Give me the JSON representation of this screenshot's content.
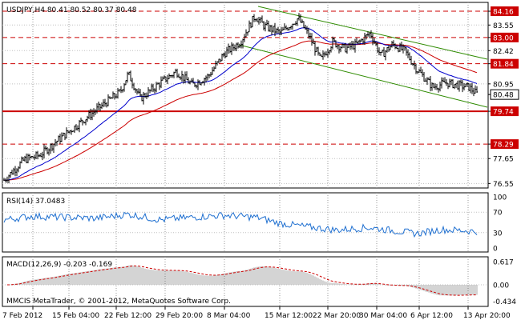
{
  "header": {
    "symbol_line": "USDJPY,H4  80.41 80.52 80.37 80.48"
  },
  "main_panel": {
    "price_levels": [
      {
        "label": "84.16",
        "value": 84.16,
        "style": "box"
      },
      {
        "label": "83.55",
        "value": 83.55,
        "style": "tick"
      },
      {
        "label": "83.00",
        "value": 83.0,
        "style": "box"
      },
      {
        "label": "82.42",
        "value": 82.42,
        "style": "tick"
      },
      {
        "label": "81.84",
        "value": 81.84,
        "style": "box"
      },
      {
        "label": "80.95",
        "value": 80.95,
        "style": "tick"
      },
      {
        "label": "80.48",
        "value": 80.48,
        "style": "current"
      },
      {
        "label": "79.74",
        "value": 79.74,
        "style": "box"
      },
      {
        "label": "78.29",
        "value": 78.29,
        "style": "box"
      },
      {
        "label": "77.65",
        "value": 77.65,
        "style": "tick"
      },
      {
        "label": "76.55",
        "value": 76.55,
        "style": "tick"
      }
    ],
    "resistance_dashed": [
      84.16,
      83.0,
      81.84,
      78.29
    ],
    "support_solid": 79.74
  },
  "rsi_panel": {
    "label": "RSI(14) 37.0483",
    "levels": [
      {
        "label": "100",
        "value": 100
      },
      {
        "label": "70",
        "value": 70
      },
      {
        "label": "30",
        "value": 30
      },
      {
        "label": "0",
        "value": 0
      }
    ]
  },
  "macd_panel": {
    "label": "MACD(12,26,9) -0.203 -0.169",
    "levels": [
      {
        "label": "0.617",
        "value": 0.617
      },
      {
        "label": "0.00",
        "value": 0.0
      },
      {
        "label": "-0.434",
        "value": -0.434
      }
    ]
  },
  "watermark": "MMCIS MetaTrader, © 2001-2012, MetaQuotes Software Corp.",
  "time_axis": [
    "7 Feb 2012",
    "15 Feb 04:00",
    "22 Feb 12:00",
    "29 Feb 20:00",
    "8 Mar 04:00",
    "15 Mar 12:00",
    "22 Mar 20:00",
    "30 Mar 04:00",
    "6 Apr 12:00",
    "13 Apr 20:00"
  ],
  "colors": {
    "candle": "#000000",
    "ma_fast": "#0000cc",
    "ma_slow": "#cc0000",
    "channel": "#2e8b00",
    "level": "#cc0000",
    "rsi": "#1e6fd0",
    "grid": "#9a9a9a"
  }
}
